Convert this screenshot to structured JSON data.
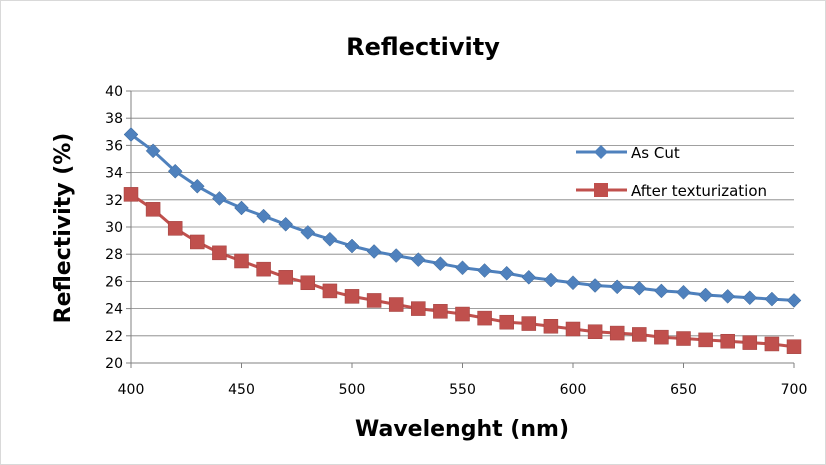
{
  "chart_data": {
    "type": "line",
    "title": "Reflectivity",
    "xlabel": "Wavelenght (nm)",
    "ylabel": "Reflectivity (%)",
    "xlim": [
      400,
      700
    ],
    "ylim": [
      20,
      40
    ],
    "xticks": [
      400,
      450,
      500,
      550,
      600,
      650,
      700
    ],
    "yticks": [
      20,
      22,
      24,
      26,
      28,
      30,
      32,
      34,
      36,
      38,
      40
    ],
    "grid": "horizontal",
    "legend": "right",
    "x": [
      400,
      410,
      420,
      430,
      440,
      450,
      460,
      470,
      480,
      490,
      500,
      510,
      520,
      530,
      540,
      550,
      560,
      570,
      580,
      590,
      600,
      610,
      620,
      630,
      640,
      650,
      660,
      670,
      680,
      690,
      700
    ],
    "series": [
      {
        "name": "As Cut",
        "color": "#4f81bd",
        "marker": "diamond",
        "values": [
          36.8,
          35.6,
          34.1,
          33.0,
          32.1,
          31.4,
          30.8,
          30.2,
          29.6,
          29.1,
          28.6,
          28.2,
          27.9,
          27.6,
          27.3,
          27.0,
          26.8,
          26.6,
          26.3,
          26.1,
          25.9,
          25.7,
          25.6,
          25.5,
          25.3,
          25.2,
          25.0,
          24.9,
          24.8,
          24.7,
          24.6
        ]
      },
      {
        "name": "After texturization",
        "color": "#c0504d",
        "marker": "square",
        "values": [
          32.4,
          31.3,
          29.9,
          28.9,
          28.1,
          27.5,
          26.9,
          26.3,
          25.9,
          25.3,
          24.9,
          24.6,
          24.3,
          24.0,
          23.8,
          23.6,
          23.3,
          23.0,
          22.9,
          22.7,
          22.5,
          22.3,
          22.2,
          22.1,
          21.9,
          21.8,
          21.7,
          21.6,
          21.5,
          21.4,
          21.2
        ]
      }
    ]
  }
}
